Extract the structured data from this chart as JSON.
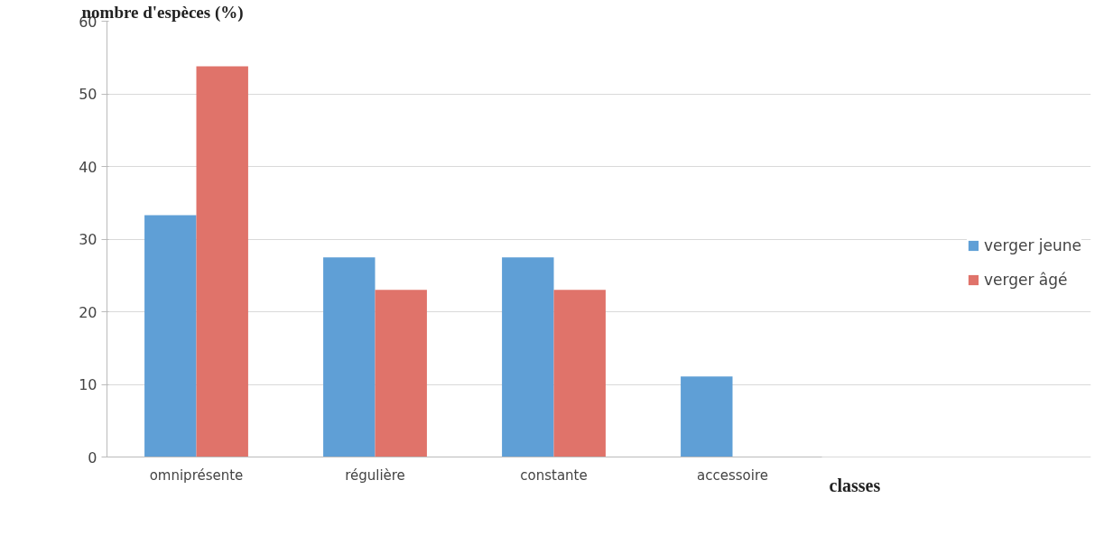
{
  "chart_data": {
    "type": "bar",
    "ylabel": "nombre d'espèces (%)",
    "xlabel": "classes",
    "categories": [
      "omniprésente",
      "régulière",
      "constante",
      "accessoire"
    ],
    "series": [
      {
        "name": "verger jeune",
        "color": "#5f9fd6",
        "values": [
          33.3,
          27.5,
          27.5,
          11.1
        ]
      },
      {
        "name": "verger âgé",
        "color": "#e0736a",
        "values": [
          53.8,
          23.0,
          23.0,
          0
        ]
      }
    ],
    "ylim": [
      0,
      60
    ],
    "yticks": [
      0,
      10,
      20,
      30,
      40,
      50,
      60
    ],
    "grid": "y",
    "legend": "right"
  }
}
